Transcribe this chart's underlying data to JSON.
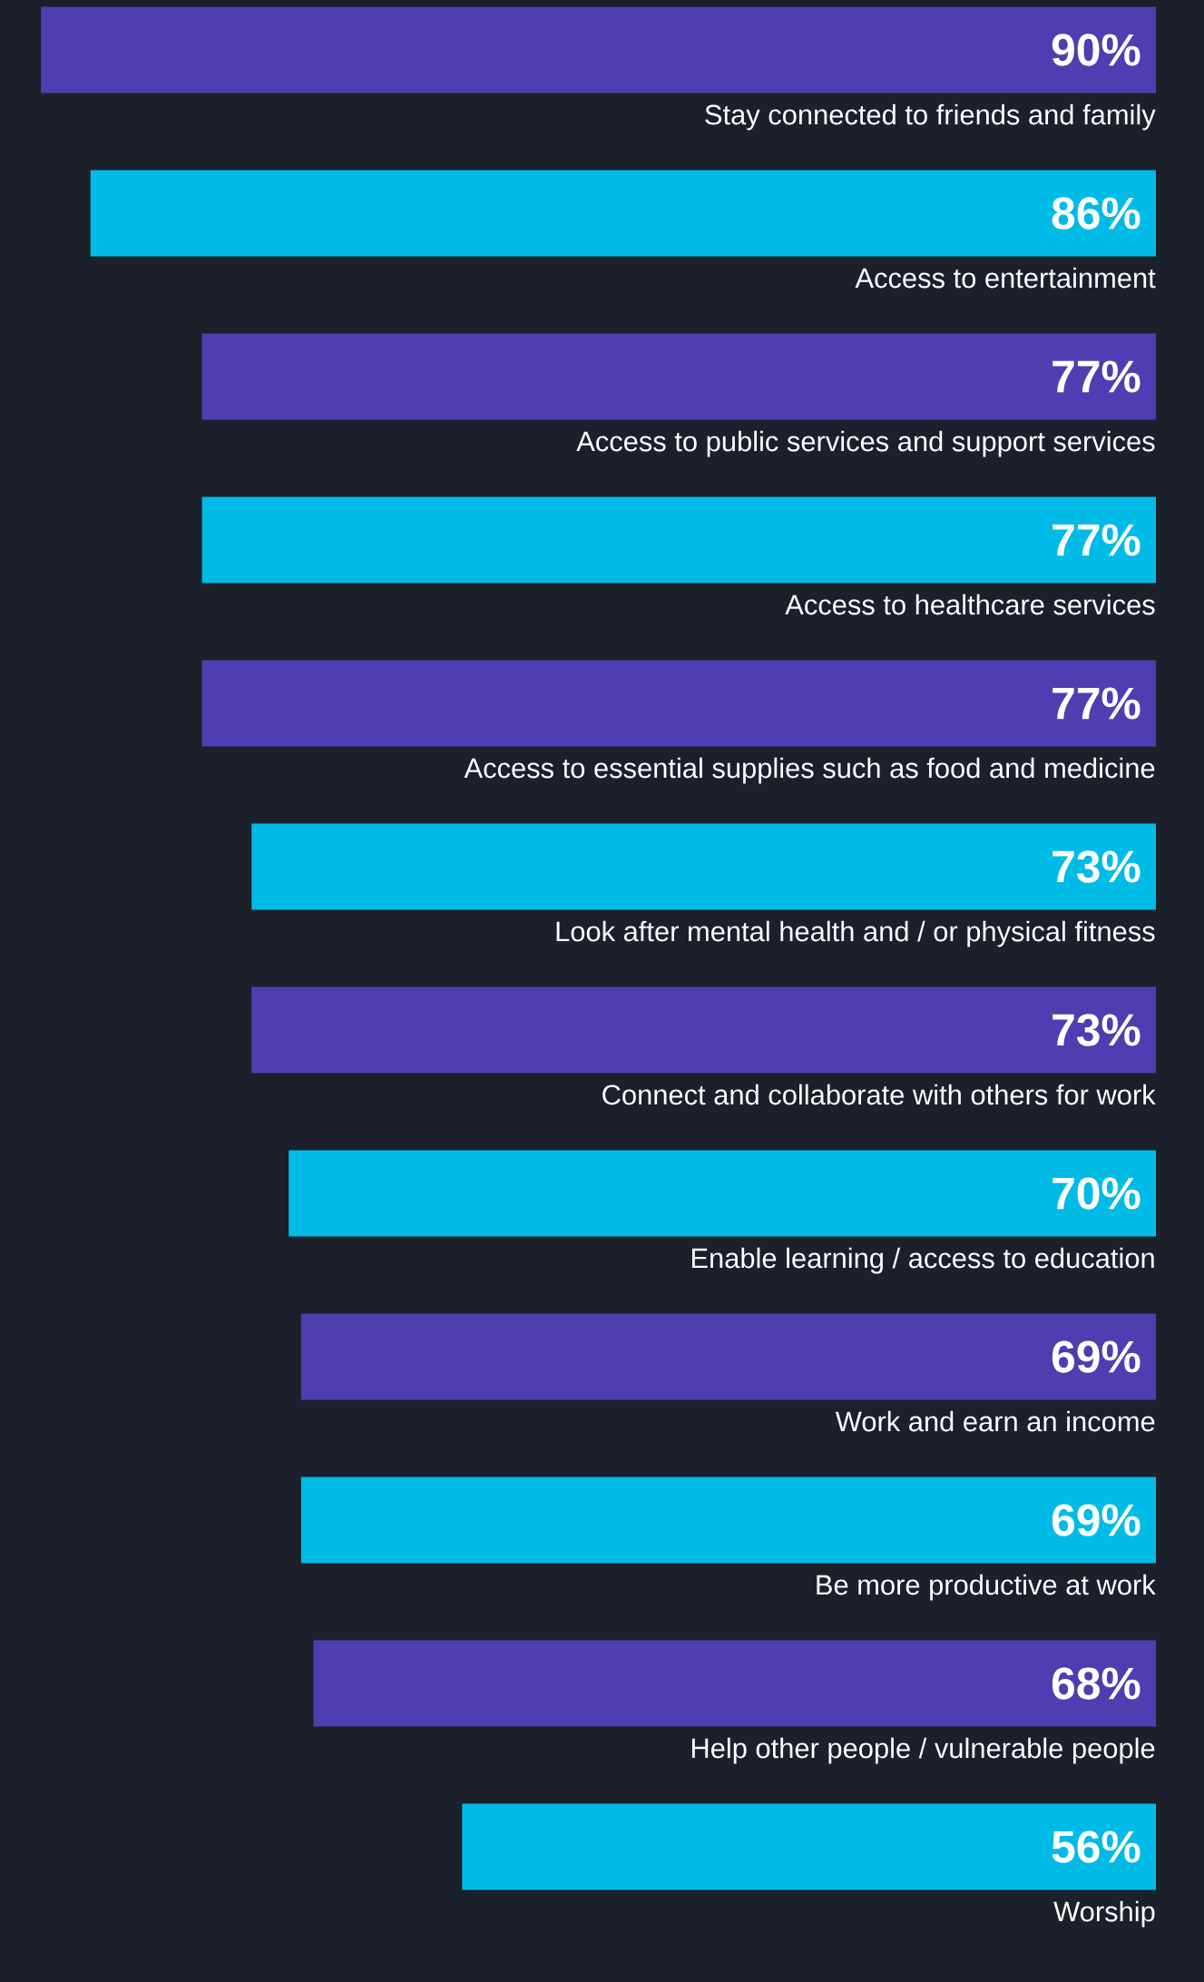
{
  "chart_data": {
    "type": "bar",
    "orientation": "horizontal",
    "categories": [
      "Stay connected to friends and family",
      "Access to entertainment",
      "Access to public services and support services",
      "Access to healthcare services",
      "Access to essential supplies such as food and medicine",
      "Look after mental health and / or physical fitness",
      "Connect and collaborate with others for work",
      "Enable learning / access to education",
      "Work and earn an income",
      "Be more productive at work",
      "Help other people / vulnerable people",
      "Worship"
    ],
    "values": [
      90,
      86,
      77,
      77,
      77,
      73,
      73,
      70,
      69,
      69,
      68,
      56
    ],
    "value_labels": [
      "90%",
      "86%",
      "77%",
      "77%",
      "77%",
      "73%",
      "73%",
      "70%",
      "69%",
      "69%",
      "68%",
      "56%"
    ],
    "colors": [
      "#4f3eb1",
      "#00bbe6",
      "#4f3eb1",
      "#00bbe6",
      "#4f3eb1",
      "#00bbe6",
      "#4f3eb1",
      "#00bbe6",
      "#4f3eb1",
      "#00bbe6",
      "#4f3eb1",
      "#00bbe6"
    ]
  }
}
